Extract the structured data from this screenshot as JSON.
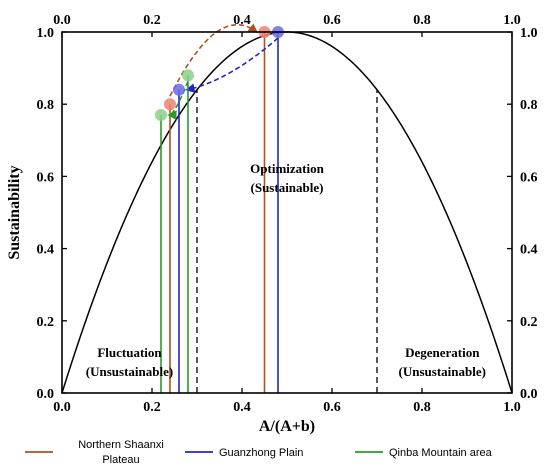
{
  "chart_data": {
    "type": "line",
    "xlabel": "A/(A+b)",
    "ylabel": "Sustainability",
    "xlim": [
      0.0,
      1.0
    ],
    "ylim": [
      0.0,
      1.0
    ],
    "x_ticks": [
      "0.0",
      "0.2",
      "0.4",
      "0.6",
      "0.8",
      "1.0"
    ],
    "y_ticks": [
      "0.0",
      "0.2",
      "0.4",
      "0.6",
      "0.8",
      "1.0"
    ],
    "grid": false,
    "curve": {
      "type": "parabola",
      "peak_x": 0.5,
      "peak_y": 1.0
    },
    "thresholds": [
      0.3,
      0.7
    ],
    "regions": [
      {
        "line1": "Fluctuation",
        "line2": "(Unsustainable)",
        "x": 0.15,
        "y": 0.1
      },
      {
        "line1": "Optimization",
        "line2": "(Sustainable)",
        "x": 0.5,
        "y": 0.61
      },
      {
        "line1": "Degeneration",
        "line2": "(Unsustainable)",
        "x": 0.845,
        "y": 0.1
      }
    ],
    "series": [
      {
        "name": "Northern Shaanxi Plateau",
        "color": "#b0521e",
        "dot_color": "#f08070",
        "points": [
          {
            "x": 0.24,
            "y": 0.8
          },
          {
            "x": 0.45,
            "y": 1.0
          }
        ],
        "arrow": "forward"
      },
      {
        "name": "Guanzhong Plain",
        "color": "#2424c8",
        "dot_color": "#6a6ae8",
        "points": [
          {
            "x": 0.26,
            "y": 0.84
          },
          {
            "x": 0.48,
            "y": 1.0
          }
        ],
        "arrow": "backward"
      },
      {
        "name": "Qinba Mountain area",
        "color": "#2a9a2a",
        "dot_color": "#88d088",
        "points": [
          {
            "x": 0.22,
            "y": 0.77
          },
          {
            "x": 0.28,
            "y": 0.88
          }
        ],
        "arrow": "backward"
      }
    ],
    "legend": {
      "placement": "bottom",
      "entries": [
        {
          "line1": "Northern Shaanxi",
          "line2": "Plateau",
          "color": "#b0521e"
        },
        {
          "line1": "Guanzhong Plain",
          "line2": "",
          "color": "#2424c8"
        },
        {
          "line1": "Qinba Mountain area",
          "line2": "",
          "color": "#2a9a2a"
        }
      ]
    }
  }
}
